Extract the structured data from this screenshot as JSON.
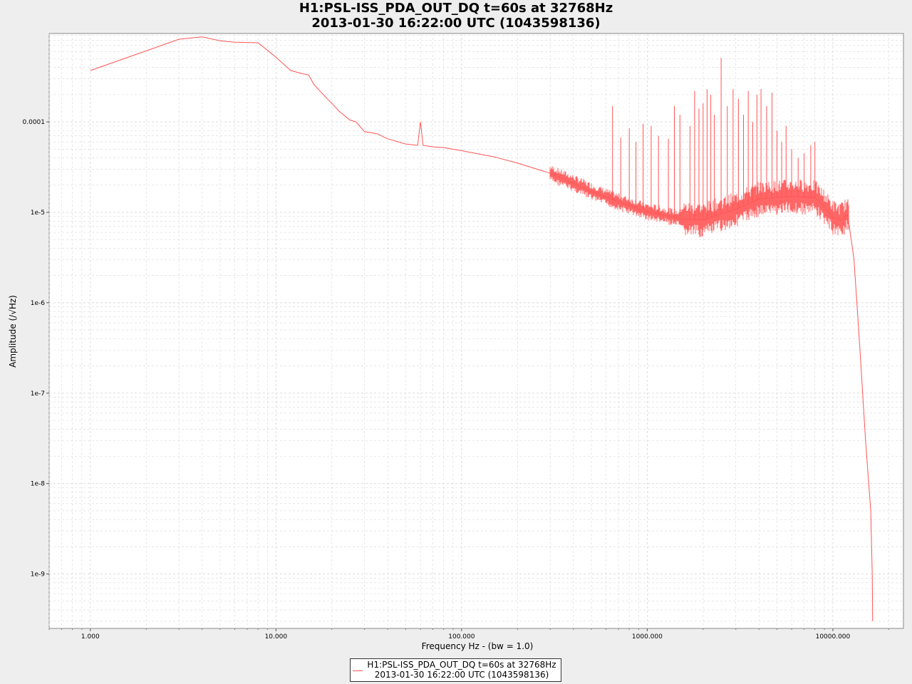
{
  "title": {
    "line1": "H1:PSL-ISS_PDA_OUT_DQ t=60s at 32768Hz",
    "line2": "2013-01-30 16:22:00 UTC (1043598136)"
  },
  "colors": {
    "background": "#eeeeee",
    "plot_area": "#ffffff",
    "grid": "#d8d8d8",
    "series": "#ff5555"
  },
  "chart_data": {
    "type": "line",
    "title": "H1:PSL-ISS_PDA_OUT_DQ t=60s at 32768Hz\n2013-01-30 16:22:00 UTC (1043598136)",
    "xlabel": "Frequency Hz - (bw = 1.0)",
    "ylabel": "Amplitude  (/√Hz)",
    "x_scale": "log",
    "y_scale": "log",
    "xlim": [
      0.6,
      24000
    ],
    "ylim": [
      2.5e-10,
      0.00095
    ],
    "grid": true,
    "legend_position": "bottom-center",
    "x_ticks": [
      {
        "value": 1,
        "label": "1.000"
      },
      {
        "value": 10,
        "label": "10.000"
      },
      {
        "value": 100,
        "label": "100.000"
      },
      {
        "value": 1000,
        "label": "1000.000"
      },
      {
        "value": 10000,
        "label": "10000.000"
      }
    ],
    "y_ticks": [
      {
        "value": 0.0001,
        "label": "0.0001"
      },
      {
        "value": 1e-05,
        "label": "1e-5"
      },
      {
        "value": 1e-06,
        "label": "1e-6"
      },
      {
        "value": 1e-07,
        "label": "1e-7"
      },
      {
        "value": 1e-08,
        "label": "1e-8"
      },
      {
        "value": 1e-09,
        "label": "1e-9"
      }
    ],
    "series": [
      {
        "name": "H1:PSL-ISS_PDA_OUT_DQ t=60s at 32768Hz\n2013-01-30 16:22:00 UTC (1043598136)",
        "color": "#ff5555",
        "x": [
          1,
          3,
          4,
          5,
          6,
          8,
          10,
          12,
          14,
          15,
          16,
          18,
          20,
          22,
          25,
          27,
          30,
          35,
          40,
          50,
          58,
          60,
          62,
          70,
          80,
          100,
          150,
          200,
          300,
          400,
          500,
          700,
          1000,
          1500,
          2000,
          3000,
          4000,
          6000,
          8000,
          9000,
          10000,
          11000,
          12000,
          13000,
          14000,
          15000,
          16000,
          16300,
          16384
        ],
        "y": [
          0.00037,
          0.00082,
          0.00087,
          0.00079,
          0.00076,
          0.00075,
          0.00052,
          0.00037,
          0.00034,
          0.00033,
          0.00026,
          0.0002,
          0.00016,
          0.00013,
          0.000105,
          0.0001,
          7.8e-05,
          7.4e-05,
          6.5e-05,
          5.7e-05,
          5.5e-05,
          0.0001,
          5.5e-05,
          5.3e-05,
          5.2e-05,
          4.8e-05,
          4.1e-05,
          3.5e-05,
          2.7e-05,
          2.1e-05,
          1.7e-05,
          1.3e-05,
          1.02e-05,
          8.5e-06,
          8.2e-06,
          1.08e-05,
          1.4e-05,
          1.5e-05,
          1.45e-05,
          1.15e-05,
          8.8e-06,
          8.2e-06,
          9.5e-06,
          3e-06,
          3e-07,
          3e-08,
          5e-09,
          1e-09,
          3e-10
        ]
      }
    ],
    "peaks": {
      "x": [
        60,
        650,
        720,
        800,
        870,
        950,
        1050,
        1150,
        1300,
        1400,
        1500,
        1700,
        1800,
        1900,
        2000,
        2100,
        2200,
        2300,
        2500,
        2700,
        2900,
        3100,
        3300,
        3500,
        3700,
        3900,
        4100,
        4400,
        4700,
        5000,
        5300,
        5600,
        6000,
        6500,
        7000,
        7600,
        8000
      ],
      "y": [
        0.0001,
        0.00015,
        6.7e-05,
        8.5e-05,
        6e-05,
        9.5e-05,
        9e-05,
        7e-05,
        6.5e-05,
        0.00015,
        0.00012,
        9e-05,
        0.00022,
        0.00014,
        0.00016,
        0.00023,
        0.0002,
        0.00012,
        0.00051,
        0.00015,
        0.00023,
        0.00018,
        0.00012,
        0.00022,
        0.0001,
        0.0002,
        0.00023,
        0.00015,
        0.00021,
        8e-05,
        6e-05,
        9e-05,
        5e-05,
        4e-05,
        4.5e-05,
        5.5e-05,
        6e-05
      ]
    }
  },
  "legend": {
    "line1": "H1:PSL-ISS_PDA_OUT_DQ t=60s at 32768Hz",
    "line2": "2013-01-30 16:22:00 UTC (1043598136)"
  }
}
